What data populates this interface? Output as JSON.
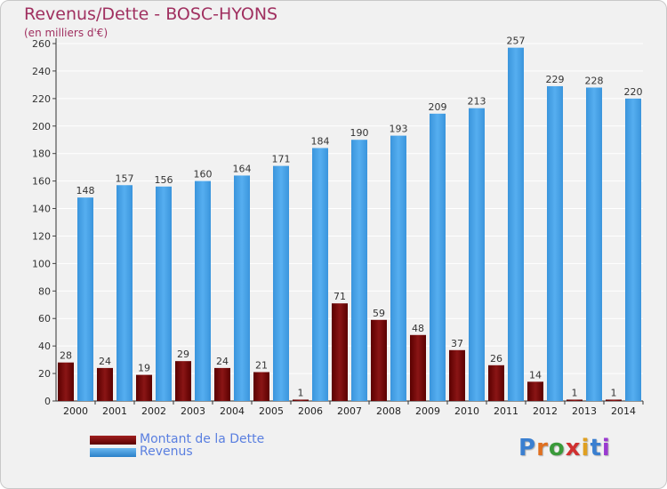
{
  "title": "Revenus/Dette - BOSC-HYONS",
  "subtitle": "(en milliers d'€)",
  "brand": "Proxiti",
  "colors": {
    "dette": "#7a0a0a",
    "revenus": "#3a97dc",
    "title": "#a03060",
    "legend_text": "#5a7fe0",
    "grid": "#ffffff",
    "plot_bg": "#f1f1f1"
  },
  "legend": [
    {
      "label": "Montant de la Dette",
      "color": "#7a0a0a"
    },
    {
      "label": "Revenus",
      "color": "#3a97dc"
    }
  ],
  "chart_data": {
    "type": "bar",
    "categories": [
      "2000",
      "2001",
      "2002",
      "2003",
      "2004",
      "2005",
      "2006",
      "2007",
      "2008",
      "2009",
      "2010",
      "2011",
      "2012",
      "2013",
      "2014"
    ],
    "series": [
      {
        "name": "Montant de la Dette",
        "values": [
          28,
          24,
          19,
          29,
          24,
          21,
          1,
          71,
          59,
          48,
          37,
          26,
          14,
          1,
          1
        ]
      },
      {
        "name": "Revenus",
        "values": [
          148,
          157,
          156,
          160,
          164,
          171,
          184,
          190,
          193,
          209,
          213,
          257,
          229,
          228,
          220
        ]
      }
    ],
    "title": "Revenus/Dette - BOSC-HYONS",
    "ylim": [
      0,
      260
    ],
    "yticks": [
      0,
      20,
      40,
      60,
      80,
      100,
      120,
      140,
      160,
      180,
      200,
      220,
      240,
      260
    ],
    "grid": true,
    "legend_position": "bottom-left"
  }
}
